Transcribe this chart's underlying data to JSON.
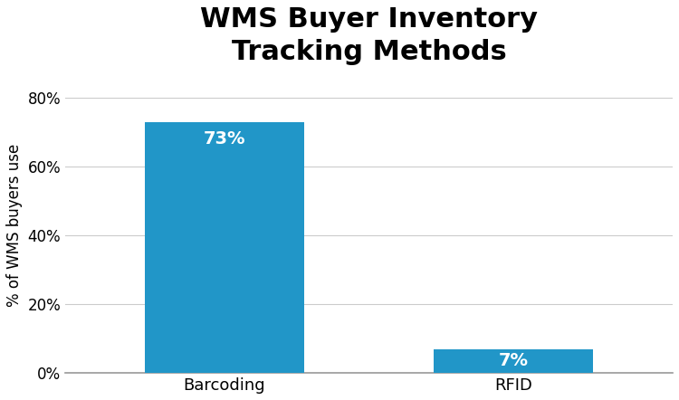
{
  "categories": [
    "Barcoding",
    "RFID"
  ],
  "values": [
    73,
    7
  ],
  "bar_color": "#2196c8",
  "bar_labels": [
    "73%",
    "7%"
  ],
  "title": "WMS Buyer Inventory\nTracking Methods",
  "ylabel": "% of WMS buyers use",
  "ylim": [
    0,
    86
  ],
  "yticks": [
    0,
    20,
    40,
    60,
    80
  ],
  "ytick_labels": [
    "0%",
    "20%",
    "40%",
    "60%",
    "80%"
  ],
  "title_fontsize": 22,
  "title_fontweight": "bold",
  "label_fontsize": 13,
  "ylabel_fontsize": 12,
  "tick_fontsize": 12,
  "bar_label_fontsize": 14,
  "bar_label_color": "#ffffff",
  "background_color": "#ffffff",
  "grid_color": "#cccccc",
  "bar_width": 0.55,
  "x_positions": [
    0,
    1
  ]
}
